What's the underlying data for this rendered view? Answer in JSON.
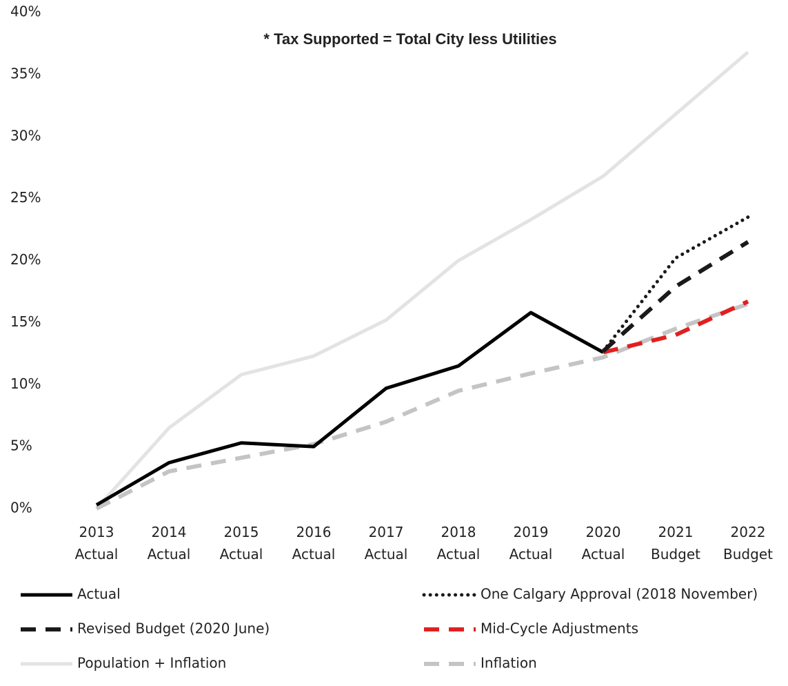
{
  "chart_data": {
    "type": "line",
    "annotation": "* Tax Supported = Total City less Utilities",
    "categories": [
      "2013 Actual",
      "2014 Actual",
      "2015 Actual",
      "2016 Actual",
      "2017 Actual",
      "2018 Actual",
      "2019 Actual",
      "2020 Actual",
      "2021 Budget",
      "2022 Budget"
    ],
    "ylim": [
      0,
      40
    ],
    "yticks": [
      {
        "value": 0,
        "label": "0%"
      },
      {
        "value": 5,
        "label": "5%"
      },
      {
        "value": 10,
        "label": "10%"
      },
      {
        "value": 15,
        "label": "15%"
      },
      {
        "value": 20,
        "label": "20%"
      },
      {
        "value": 25,
        "label": "25%"
      },
      {
        "value": 30,
        "label": "30%"
      },
      {
        "value": 35,
        "label": "35%"
      },
      {
        "value": 40,
        "label": "40%"
      }
    ],
    "series": [
      {
        "name": "Actual",
        "color": "#000000",
        "style": "solid",
        "values": [
          0.3,
          3.7,
          5.3,
          5.0,
          9.7,
          11.5,
          15.8,
          12.6,
          null,
          null
        ]
      },
      {
        "name": "One Calgary Approval (2018 November)",
        "color": "#1a1a1a",
        "style": "dotted",
        "values": [
          null,
          null,
          null,
          null,
          null,
          null,
          null,
          12.7,
          20.2,
          23.5
        ]
      },
      {
        "name": "Revised Budget (2020 June)",
        "color": "#1a1a1a",
        "style": "dashed",
        "values": [
          null,
          null,
          null,
          null,
          null,
          null,
          null,
          12.7,
          17.9,
          21.5
        ]
      },
      {
        "name": "Mid-Cycle Adjustments",
        "color": "#e02020",
        "style": "dashed",
        "values": [
          null,
          null,
          null,
          null,
          null,
          null,
          null,
          12.6,
          14.0,
          16.7
        ]
      },
      {
        "name": "Population + Inflation",
        "color": "#e3e3e3",
        "style": "solid",
        "values": [
          0,
          6.5,
          10.8,
          12.3,
          15.2,
          20.0,
          23.3,
          26.8,
          31.8,
          36.8
        ]
      },
      {
        "name": "Inflation",
        "color": "#c4c4c4",
        "style": "dashed",
        "values": [
          0,
          3.0,
          4.1,
          5.2,
          7.0,
          9.5,
          10.9,
          12.2,
          14.5,
          16.5
        ]
      }
    ]
  }
}
